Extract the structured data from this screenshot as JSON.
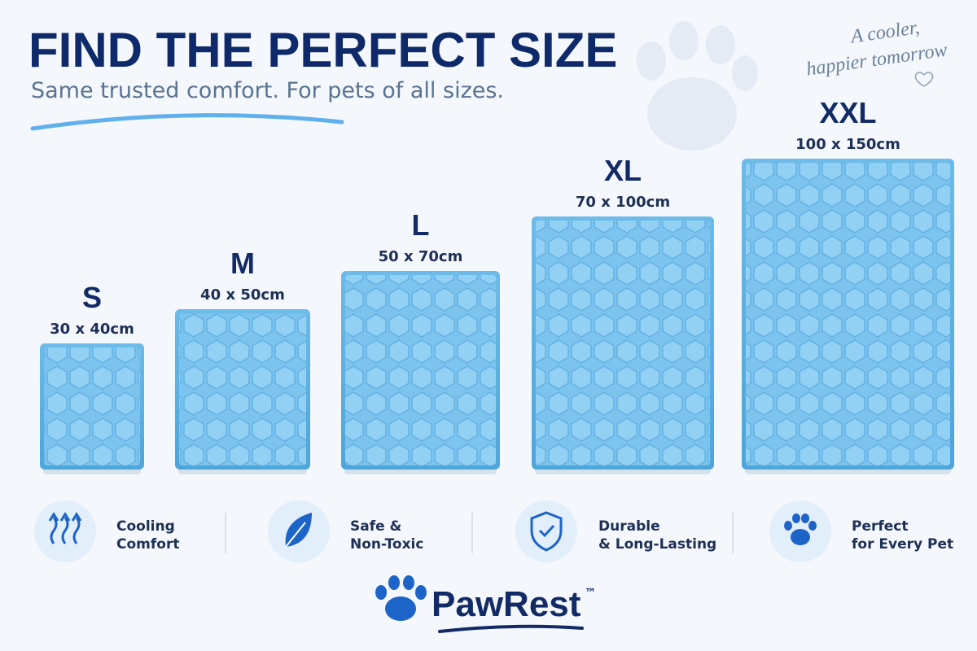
{
  "header": {
    "title": "FIND THE PERFECT SIZE",
    "subtitle": "Same trusted comfort. For pets of all sizes."
  },
  "tagline": {
    "lines": [
      "A cooler,",
      "happier tomorrow"
    ]
  },
  "sizes": [
    {
      "label": "S",
      "dimensions": "30 x 40cm"
    },
    {
      "label": "M",
      "dimensions": "40 x 50cm"
    },
    {
      "label": "L",
      "dimensions": "50 x 70cm"
    },
    {
      "label": "XL",
      "dimensions": "70 x 100cm"
    },
    {
      "label": "XXL",
      "dimensions": "100 x 150cm"
    }
  ],
  "features": [
    {
      "lines": [
        "Cooling",
        "Comfort"
      ]
    },
    {
      "lines": [
        "Safe &",
        "Non-Toxic"
      ]
    },
    {
      "lines": [
        "Durable",
        "& Long-Lasting"
      ]
    },
    {
      "lines": [
        "Perfect",
        "for Every Pet"
      ]
    }
  ],
  "brand": {
    "name": "PawRest",
    "mark": "™"
  }
}
